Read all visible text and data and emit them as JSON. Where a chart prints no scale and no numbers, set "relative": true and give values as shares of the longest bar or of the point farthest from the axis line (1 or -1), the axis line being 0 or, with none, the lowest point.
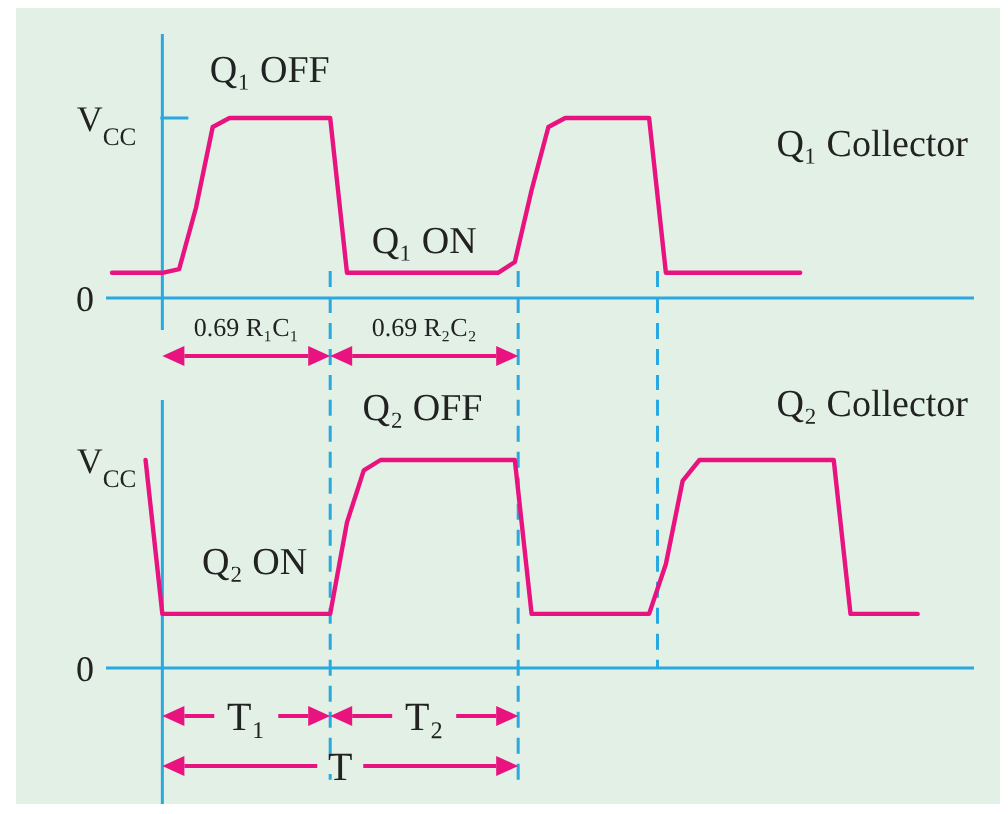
{
  "chart_data": [
    {
      "type": "line",
      "relative": true,
      "categories": [
        null,
        null,
        null,
        null,
        null,
        null,
        null,
        null,
        null,
        null,
        null,
        null,
        null,
        null,
        null,
        null,
        null,
        null,
        null,
        null,
        null,
        null,
        null,
        null,
        null,
        null,
        null,
        null,
        null,
        null,
        null,
        null,
        null,
        null,
        null,
        null,
        null,
        null,
        null,
        null,
        null,
        null,
        null,
        null,
        null,
        null,
        null,
        null,
        null,
        null,
        null,
        null
      ],
      "marker": "none",
      "line_style": "solid",
      "series": [
        {
          "name": "Q₁ Collector",
          "color": "#e8137f",
          "values": [
            0.14,
            0.14,
            0.14,
            0.14,
            0.16,
            0.5,
            0.95,
            1,
            1,
            1,
            1,
            1,
            1,
            1,
            0.14,
            0.14,
            0.14,
            0.14,
            0.14,
            0.14,
            0.14,
            0.14,
            0.14,
            0.14,
            0.2,
            0.6,
            0.95,
            1,
            1,
            1,
            1,
            1,
            1,
            0.14,
            0.14,
            0.14,
            0.14,
            0.14,
            0.14,
            0.14,
            0.14,
            0.14,
            null,
            null,
            null,
            null,
            null,
            null,
            null,
            null,
            null,
            null
          ]
        }
      ],
      "annotations": [
        "V$_{CC}$",
        "0",
        "Q₁ OFF",
        "Q₁ ON",
        "0.69 R₁C₁",
        "0.69 R₂C₂"
      ]
    },
    {
      "type": "line",
      "relative": true,
      "categories": [
        null,
        null,
        null,
        null,
        null,
        null,
        null,
        null,
        null,
        null,
        null,
        null,
        null,
        null,
        null,
        null,
        null,
        null,
        null,
        null,
        null,
        null,
        null,
        null,
        null,
        null,
        null,
        null,
        null,
        null,
        null,
        null,
        null,
        null,
        null,
        null,
        null,
        null,
        null,
        null,
        null,
        null,
        null,
        null,
        null,
        null,
        null,
        null,
        null,
        null,
        null,
        null
      ],
      "marker": "none",
      "line_style": "solid",
      "series": [
        {
          "name": "Q₂ Collector",
          "color": "#e8137f",
          "values": [
            null,
            null,
            1,
            0.26,
            0.26,
            0.26,
            0.26,
            0.26,
            0.26,
            0.26,
            0.26,
            0.26,
            0.26,
            0.26,
            0.7,
            0.95,
            1,
            1,
            1,
            1,
            1,
            1,
            1,
            1,
            1,
            0.26,
            0.26,
            0.26,
            0.26,
            0.26,
            0.26,
            0.26,
            0.26,
            0.5,
            0.9,
            1,
            1,
            1,
            1,
            1,
            1,
            1,
            1,
            1,
            0.26,
            0.26,
            0.26,
            0.26,
            0.26,
            null,
            null,
            null
          ]
        }
      ],
      "annotations": [
        "V$_{CC}$",
        "0",
        "Q₂ OFF",
        "Q₂ ON",
        "T₁",
        "T₂",
        "T"
      ]
    }
  ]
}
